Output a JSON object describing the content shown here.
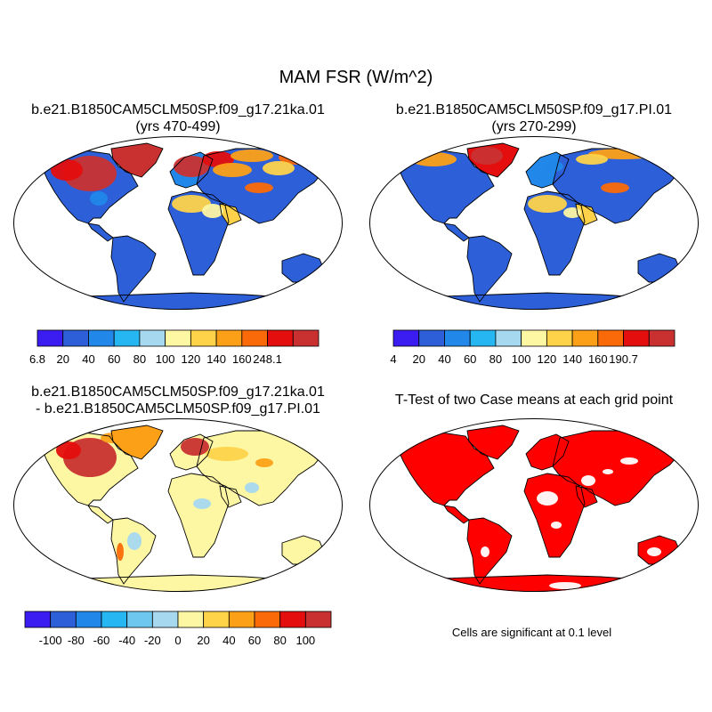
{
  "title": "MAM FSR (W/m^2)",
  "panels": [
    {
      "title_line1": "b.e21.B1850CAM5CLM50SP.f09_g17.21ka.01",
      "title_line2": "(yrs 470-499)"
    },
    {
      "title_line1": "b.e21.B1850CAM5CLM50SP.f09_g17.PI.01",
      "title_line2": "(yrs 270-299)"
    },
    {
      "title_line1": "b.e21.B1850CAM5CLM50SP.f09_g17.21ka.01",
      "title_line2": "- b.e21.B1850CAM5CLM50SP.f09_g17.PI.01"
    },
    {
      "title_line1": "T-Test of two Case means at each grid point",
      "title_line2": ""
    }
  ],
  "significance_note": "Cells are significant at 0.1 level",
  "chart_data": [
    {
      "type": "heatmap",
      "title": "b.e21.B1850CAM5CLM50SP.f09_g17.21ka.01 (yrs 470-499)",
      "colorbar": {
        "labels": [
          "6.8",
          "20",
          "40",
          "60",
          "80",
          "100",
          "120",
          "140",
          "160",
          "248.1"
        ],
        "colors": [
          "#3b1df2",
          "#2d5fd9",
          "#2187e8",
          "#26b6f2",
          "#a6d8f0",
          "#fdf6a3",
          "#fed34a",
          "#fca018",
          "#fb6a09",
          "#e40e0e",
          "#c93131"
        ],
        "min": 6.8,
        "max": 248.1
      }
    },
    {
      "type": "heatmap",
      "title": "b.e21.B1850CAM5CLM50SP.f09_g17.PI.01 (yrs 270-299)",
      "colorbar": {
        "labels": [
          "4",
          "20",
          "40",
          "60",
          "80",
          "100",
          "120",
          "140",
          "160",
          "190.7"
        ],
        "colors": [
          "#3b1df2",
          "#2d5fd9",
          "#2187e8",
          "#26b6f2",
          "#a6d8f0",
          "#fdf6a3",
          "#fed34a",
          "#fca018",
          "#fb6a09",
          "#e40e0e",
          "#c93131"
        ],
        "min": 4,
        "max": 190.7
      }
    },
    {
      "type": "heatmap",
      "title": "b.e21.B1850CAM5CLM50SP.f09_g17.21ka.01 - b.e21.B1850CAM5CLM50SP.f09_g17.PI.01",
      "colorbar": {
        "labels": [
          "-100",
          "-80",
          "-60",
          "-40",
          "-20",
          "0",
          "20",
          "40",
          "60",
          "80",
          "100"
        ],
        "colors": [
          "#3b1df2",
          "#2d5fd9",
          "#2187e8",
          "#26b6f2",
          "#6ec7ef",
          "#a6d8f0",
          "#fdf6a3",
          "#fed34a",
          "#fca018",
          "#fb6a09",
          "#e40e0e",
          "#c93131"
        ]
      }
    },
    {
      "type": "heatmap",
      "title": "T-Test of two Case means at each grid point",
      "significant_color": "#ff0000"
    }
  ]
}
